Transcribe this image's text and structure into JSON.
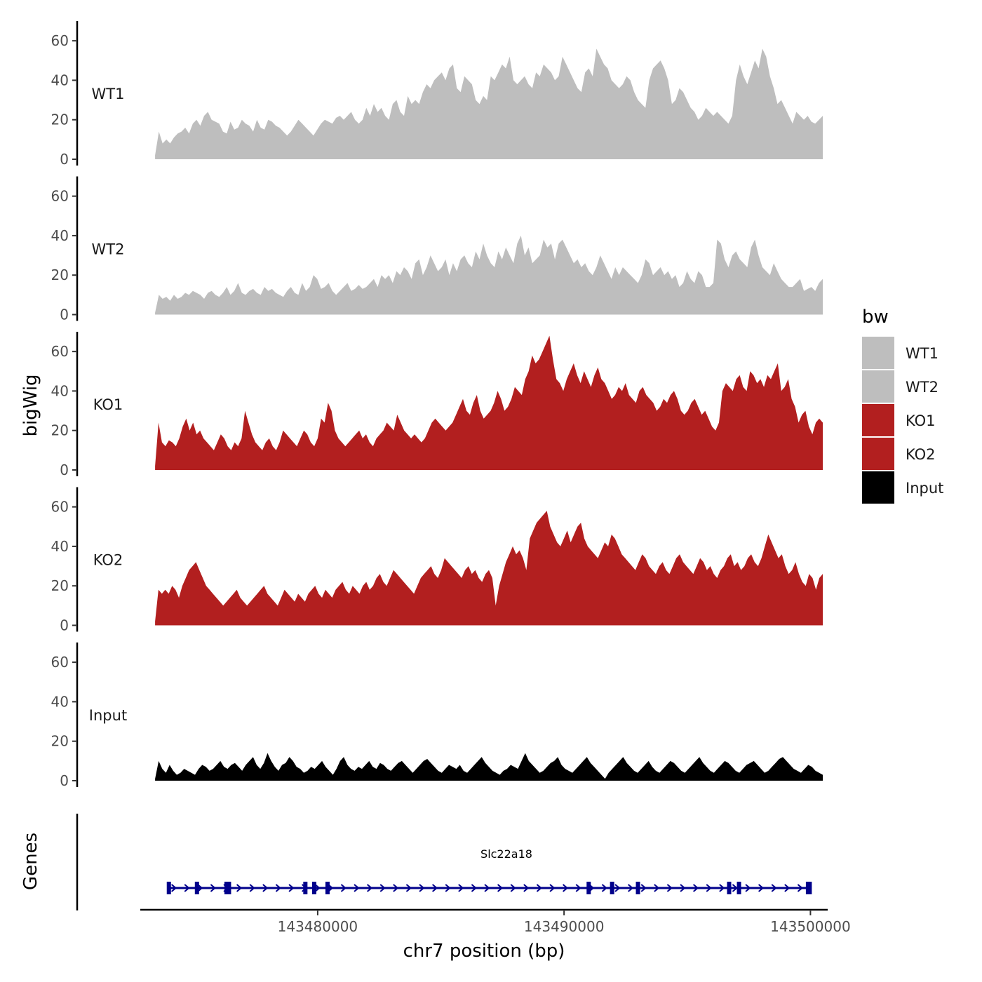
{
  "chart_data": {
    "type": "area",
    "ylabel": "bigWig",
    "xlabel": "chr7 position (bp)",
    "ylim": [
      0,
      70
    ],
    "yticks": [
      "0",
      "20",
      "40",
      "60"
    ],
    "xlim": [
      143472800,
      143500700
    ],
    "xticks": [
      {
        "value": 143480000,
        "label": "143480000"
      },
      {
        "value": 143490000,
        "label": "143490000"
      },
      {
        "value": 143500000,
        "label": "143500000"
      }
    ],
    "data_range": [
      143473400,
      143500500
    ],
    "series": [
      {
        "name": "WT1",
        "color": "#bebebe",
        "values": [
          2,
          14,
          8,
          10,
          8,
          11,
          13,
          14,
          16,
          13,
          18,
          20,
          17,
          22,
          24,
          20,
          19,
          18,
          14,
          13,
          19,
          15,
          16,
          20,
          18,
          17,
          14,
          20,
          16,
          15,
          20,
          19,
          17,
          16,
          14,
          12,
          14,
          17,
          20,
          18,
          16,
          14,
          12,
          15,
          18,
          20,
          19,
          18,
          21,
          22,
          20,
          22,
          24,
          20,
          18,
          20,
          26,
          22,
          28,
          24,
          26,
          22,
          20,
          28,
          30,
          24,
          22,
          32,
          28,
          30,
          28,
          34,
          38,
          36,
          40,
          42,
          44,
          40,
          46,
          48,
          36,
          34,
          42,
          40,
          38,
          30,
          28,
          32,
          30,
          42,
          40,
          44,
          48,
          46,
          52,
          40,
          38,
          40,
          42,
          38,
          36,
          44,
          42,
          48,
          46,
          44,
          40,
          42,
          52,
          48,
          44,
          40,
          36,
          34,
          44,
          46,
          42,
          56,
          52,
          48,
          46,
          40,
          38,
          36,
          38,
          42,
          40,
          34,
          30,
          28,
          26,
          40,
          46,
          48,
          50,
          46,
          40,
          28,
          30,
          36,
          34,
          30,
          26,
          24,
          20,
          22,
          26,
          24,
          22,
          24,
          22,
          20,
          18,
          22,
          40,
          48,
          42,
          38,
          44,
          50,
          46,
          56,
          52,
          42,
          36,
          28,
          30,
          26,
          22,
          18,
          24,
          22,
          20,
          22,
          19,
          18,
          20,
          22
        ]
      },
      {
        "name": "WT2",
        "color": "#bebebe",
        "values": [
          1,
          10,
          8,
          9,
          7,
          10,
          8,
          9,
          11,
          10,
          12,
          11,
          10,
          8,
          11,
          12,
          10,
          9,
          11,
          14,
          10,
          12,
          16,
          11,
          10,
          12,
          13,
          11,
          10,
          14,
          12,
          13,
          11,
          10,
          9,
          12,
          14,
          11,
          10,
          16,
          12,
          14,
          20,
          18,
          13,
          14,
          16,
          12,
          10,
          12,
          14,
          16,
          12,
          13,
          15,
          13,
          14,
          16,
          18,
          14,
          20,
          18,
          20,
          16,
          22,
          20,
          24,
          22,
          18,
          26,
          28,
          20,
          24,
          30,
          26,
          22,
          24,
          28,
          20,
          26,
          22,
          28,
          30,
          26,
          24,
          32,
          28,
          36,
          30,
          26,
          24,
          32,
          28,
          34,
          30,
          26,
          36,
          40,
          30,
          34,
          26,
          28,
          30,
          38,
          34,
          36,
          28,
          36,
          38,
          34,
          30,
          26,
          28,
          24,
          26,
          22,
          20,
          24,
          30,
          26,
          22,
          18,
          24,
          20,
          24,
          22,
          20,
          18,
          16,
          20,
          28,
          26,
          20,
          22,
          24,
          20,
          22,
          18,
          20,
          14,
          16,
          22,
          18,
          16,
          22,
          20,
          14,
          14,
          16,
          38,
          36,
          28,
          24,
          30,
          32,
          28,
          26,
          24,
          34,
          38,
          30,
          24,
          22,
          20,
          26,
          22,
          18,
          16,
          14,
          14,
          16,
          18,
          12,
          13,
          14,
          12,
          16,
          18
        ]
      },
      {
        "name": "KO1",
        "color": "#b21f1f",
        "values": [
          2,
          24,
          14,
          12,
          15,
          14,
          12,
          16,
          22,
          26,
          20,
          24,
          18,
          20,
          16,
          14,
          12,
          10,
          14,
          18,
          16,
          12,
          10,
          14,
          12,
          16,
          30,
          24,
          18,
          14,
          12,
          10,
          14,
          16,
          12,
          10,
          14,
          20,
          18,
          16,
          14,
          12,
          16,
          20,
          18,
          14,
          12,
          16,
          26,
          24,
          34,
          30,
          20,
          16,
          14,
          12,
          14,
          16,
          18,
          20,
          16,
          18,
          14,
          12,
          16,
          18,
          20,
          24,
          22,
          20,
          28,
          24,
          20,
          18,
          16,
          18,
          16,
          14,
          16,
          20,
          24,
          26,
          24,
          22,
          20,
          22,
          24,
          28,
          32,
          36,
          30,
          28,
          34,
          38,
          30,
          26,
          28,
          30,
          34,
          40,
          36,
          30,
          32,
          36,
          42,
          40,
          38,
          46,
          50,
          58,
          54,
          56,
          60,
          64,
          68,
          56,
          46,
          44,
          40,
          46,
          50,
          54,
          48,
          44,
          50,
          46,
          42,
          48,
          52,
          46,
          44,
          40,
          36,
          38,
          42,
          40,
          44,
          38,
          36,
          34,
          40,
          42,
          38,
          36,
          34,
          30,
          32,
          36,
          34,
          38,
          40,
          36,
          30,
          28,
          30,
          34,
          36,
          32,
          28,
          30,
          26,
          22,
          20,
          24,
          40,
          44,
          42,
          40,
          46,
          48,
          42,
          40,
          50,
          48,
          44,
          46,
          42,
          48,
          46,
          50,
          54,
          40,
          42,
          46,
          36,
          32,
          24,
          28,
          30,
          22,
          18,
          24,
          26,
          24
        ]
      },
      {
        "name": "KO2",
        "color": "#b21f1f",
        "values": [
          2,
          18,
          16,
          18,
          16,
          20,
          18,
          14,
          20,
          24,
          28,
          30,
          32,
          28,
          24,
          20,
          18,
          16,
          14,
          12,
          10,
          12,
          14,
          16,
          18,
          14,
          12,
          10,
          12,
          14,
          16,
          18,
          20,
          16,
          14,
          12,
          10,
          14,
          18,
          16,
          14,
          12,
          16,
          14,
          12,
          16,
          18,
          20,
          16,
          14,
          18,
          16,
          14,
          18,
          20,
          22,
          18,
          16,
          20,
          18,
          16,
          20,
          22,
          18,
          20,
          24,
          26,
          22,
          20,
          24,
          28,
          26,
          24,
          22,
          20,
          18,
          16,
          20,
          24,
          26,
          28,
          30,
          26,
          24,
          28,
          34,
          32,
          30,
          28,
          26,
          24,
          28,
          30,
          26,
          28,
          24,
          22,
          26,
          28,
          24,
          10,
          20,
          26,
          32,
          36,
          40,
          36,
          38,
          34,
          28,
          44,
          48,
          52,
          54,
          56,
          58,
          50,
          46,
          42,
          40,
          44,
          48,
          42,
          46,
          50,
          52,
          44,
          40,
          38,
          36,
          34,
          38,
          42,
          40,
          46,
          44,
          40,
          36,
          34,
          32,
          30,
          28,
          32,
          36,
          34,
          30,
          28,
          26,
          30,
          32,
          28,
          26,
          30,
          34,
          36,
          32,
          30,
          28,
          26,
          30,
          34,
          32,
          28,
          30,
          26,
          24,
          28,
          30,
          34,
          36,
          30,
          32,
          28,
          30,
          34,
          36,
          32,
          30,
          34,
          40,
          46,
          42,
          38,
          34,
          36,
          30,
          26,
          28,
          32,
          26,
          22,
          20,
          26,
          24,
          18,
          24,
          26
        ]
      },
      {
        "name": "Input",
        "color": "#000000",
        "values": [
          1,
          10,
          6,
          4,
          8,
          5,
          3,
          4,
          6,
          5,
          4,
          3,
          6,
          8,
          7,
          5,
          6,
          8,
          10,
          7,
          6,
          8,
          9,
          7,
          5,
          8,
          10,
          12,
          8,
          6,
          9,
          14,
          10,
          7,
          5,
          8,
          9,
          12,
          10,
          7,
          6,
          4,
          5,
          7,
          6,
          8,
          10,
          7,
          5,
          3,
          6,
          10,
          12,
          8,
          6,
          5,
          7,
          6,
          8,
          10,
          7,
          6,
          9,
          8,
          6,
          5,
          7,
          9,
          10,
          8,
          6,
          4,
          6,
          8,
          10,
          11,
          9,
          7,
          5,
          4,
          6,
          8,
          7,
          6,
          8,
          5,
          4,
          6,
          8,
          10,
          12,
          9,
          7,
          5,
          4,
          3,
          5,
          6,
          8,
          7,
          6,
          10,
          14,
          10,
          8,
          6,
          4,
          5,
          7,
          9,
          10,
          12,
          8,
          6,
          5,
          4,
          6,
          8,
          10,
          12,
          9,
          7,
          5,
          3,
          1,
          4,
          6,
          8,
          10,
          12,
          9,
          7,
          5,
          4,
          6,
          8,
          10,
          7,
          5,
          4,
          6,
          8,
          10,
          9,
          7,
          5,
          4,
          6,
          8,
          10,
          12,
          9,
          7,
          5,
          4,
          6,
          8,
          10,
          9,
          7,
          5,
          4,
          6,
          8,
          9,
          10,
          8,
          6,
          4,
          5,
          7,
          9,
          11,
          12,
          10,
          8,
          6,
          5,
          4,
          6,
          8,
          7,
          5,
          4,
          3
        ]
      }
    ],
    "gene_track": {
      "label": "Genes",
      "gene_name": "Slc22a18",
      "gene_start": 143473900,
      "gene_end": 143500000,
      "color": "#00008b",
      "exons": [
        143473960,
        143475100,
        143476300,
        143476350,
        143476400,
        143479500,
        143479860,
        143480400,
        143491000,
        143491950,
        143493000,
        143496700,
        143497100,
        143499900,
        143499970
      ]
    },
    "legend": {
      "title": "bw",
      "position": "right",
      "items": [
        {
          "label": "WT1",
          "color": "#bebebe"
        },
        {
          "label": "WT2",
          "color": "#bebebe"
        },
        {
          "label": "KO1",
          "color": "#b21f1f"
        },
        {
          "label": "KO2",
          "color": "#b21f1f"
        },
        {
          "label": "Input",
          "color": "#000000"
        }
      ]
    }
  }
}
